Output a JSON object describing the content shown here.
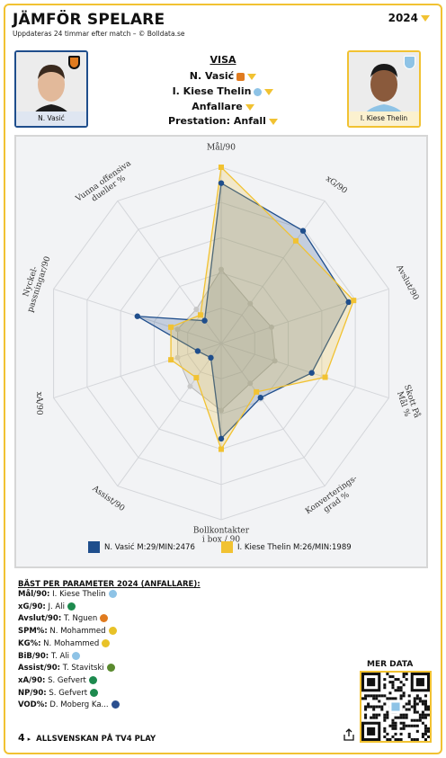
{
  "header": {
    "title": "JÄMFÖR SPELARE",
    "subtitle": "Uppdateras 24 timmar efter match – © Bolldata.se",
    "year": "2024"
  },
  "players": {
    "left": {
      "caption": "N. Vasić"
    },
    "right": {
      "caption": "I. Kiese Thelin"
    }
  },
  "visa": {
    "heading": "VISA",
    "player1": "N. Vasić",
    "player2": "I. Kiese Thelin",
    "position": "Anfallare",
    "performance": "Prestation: Anfall"
  },
  "colors": {
    "accent": "#f1c232",
    "player1": "#1f4e8c",
    "player2": "#f1c232"
  },
  "chart_data": {
    "type": "radar",
    "axes": [
      "Mål/90",
      "xG/90",
      "Avslut/90",
      "Skott På Mål %",
      "Konverterings-grad %",
      "Bollkontakter i box / 90",
      "Assist/90",
      "xA/90",
      "Nyckel-passningar/90",
      "Vunna offensiva dueller %"
    ],
    "axis_labels": [
      [
        "Mål/90"
      ],
      [
        "xG/90"
      ],
      [
        "Avslut/90"
      ],
      [
        "Skott På",
        "Mål %"
      ],
      [
        "Konverterings-",
        "grad %"
      ],
      [
        "Bollkontakter",
        "i box / 90"
      ],
      [
        "Assist/90"
      ],
      [
        "xA/90"
      ],
      [
        "Nyckel-",
        "passningar/90"
      ],
      [
        "Vunna offensiva",
        "dueller %"
      ]
    ],
    "series": [
      {
        "name": "N. Vasić",
        "legend": "N. Vasić M:29/MIN:2476",
        "values": [
          0.91,
          0.79,
          0.76,
          0.54,
          0.38,
          0.54,
          0.1,
          0.14,
          0.5,
          0.16
        ]
      },
      {
        "name": "I. Kiese Thelin",
        "legend": "I. Kiese Thelin M:26/MIN:1989",
        "values": [
          1.0,
          0.72,
          0.79,
          0.62,
          0.34,
          0.6,
          0.24,
          0.3,
          0.3,
          0.2
        ]
      }
    ],
    "inner_ring_values": [
      0.42,
      0.28,
      0.3,
      0.32,
      0.28,
      0.38,
      0.3,
      0.26,
      0.26,
      0.24
    ],
    "range": [
      0,
      1
    ],
    "rings": 5
  },
  "best": {
    "title": "BÄST PER PARAMETER 2024 (ANFALLARE):",
    "rows": [
      {
        "label": "Mål/90",
        "value": "I. Kiese Thelin",
        "club_color": "#8ec3e6"
      },
      {
        "label": "xG/90",
        "value": "J. Ali",
        "club_color": "#1d8a4e"
      },
      {
        "label": "Avslut/90",
        "value": "T. Nguen",
        "club_color": "#e07b1f"
      },
      {
        "label": "SPM%",
        "value": "N. Mohammed",
        "club_color": "#e8c228"
      },
      {
        "label": "KG%",
        "value": "N. Mohammed",
        "club_color": "#e8c228"
      },
      {
        "label": "BiB/90",
        "value": "T. Ali",
        "club_color": "#8ec3e6"
      },
      {
        "label": "Assist/90",
        "value": "T. Stavitski",
        "club_color": "#5a8a2e"
      },
      {
        "label": "xA/90",
        "value": "S. Gefvert",
        "club_color": "#1d8a4e"
      },
      {
        "label": "NP/90",
        "value": "S. Gefvert",
        "club_color": "#1d8a4e"
      },
      {
        "label": "VOD%",
        "value": "D. Moberg Ka...",
        "club_color": "#2a4f8f"
      }
    ]
  },
  "mer_data": "MER DATA",
  "footer": {
    "text": "ALLSVENSKAN PÅ TV4 PLAY",
    "logo": "4"
  }
}
